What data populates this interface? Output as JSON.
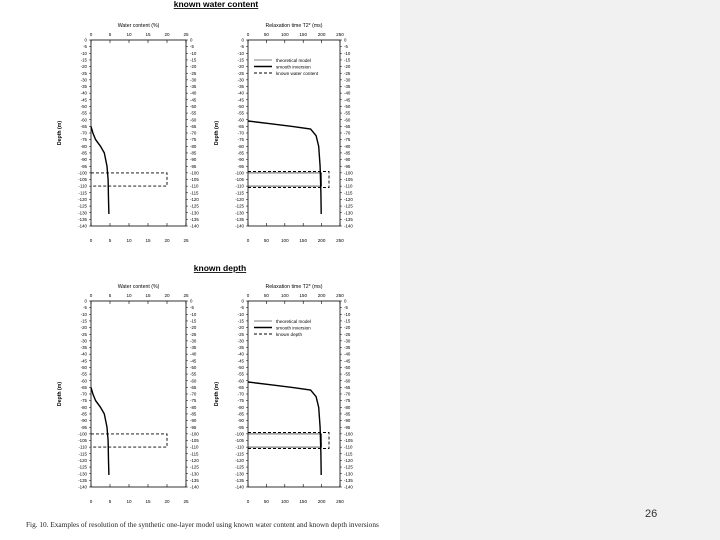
{
  "slide": {
    "page_number": "26",
    "caption": "Fig. 10. Examples of resolution of the synthetic one-layer model using known water content and known depth inversions"
  },
  "colors": {
    "ink": "#000000",
    "background": "#ffffff",
    "side_panel": "#f1f1f1"
  },
  "chart_data": [
    {
      "type": "line",
      "panel": "known water content",
      "title": "known water content",
      "xlabel": "Water content (%)",
      "ylabel": "Depth (m)",
      "xlim": [
        0,
        25
      ],
      "ylim": [
        -140,
        0
      ],
      "x_ticks": [
        "0",
        "5",
        "10",
        "15",
        "20",
        "25"
      ],
      "y_ticks_left": [
        "0",
        "-5",
        "-10",
        "-15",
        "-20",
        "-25",
        "-30",
        "-35",
        "-40",
        "-45",
        "-50",
        "-55",
        "-60",
        "-65",
        "-70",
        "-75",
        "-80",
        "-85",
        "-90",
        "-95",
        "-100",
        "-105",
        "-110",
        "-115",
        "-120",
        "-125",
        "-130",
        "-135",
        "-140"
      ],
      "y_ticks_right": [
        "0",
        "-5",
        "-10",
        "-15",
        "-20",
        "-25",
        "-30",
        "-35",
        "-40",
        "-45",
        "-50",
        "-55",
        "-60",
        "-65",
        "-70",
        "-75",
        "-80",
        "-85",
        "-90",
        "-95",
        "-100",
        "-105",
        "-110",
        "-115",
        "-120",
        "-125",
        "-130",
        "-135",
        "-140"
      ],
      "series": [
        {
          "style": "solid",
          "x": [
            0,
            0.5,
            1.2,
            2.5,
            3.5,
            4.2,
            4.5,
            4.6,
            4.7
          ],
          "y": [
            -65,
            -70,
            -75,
            -80,
            -85,
            -95,
            -105,
            -120,
            -131
          ]
        },
        {
          "style": "dashed",
          "x": [
            0,
            20,
            20,
            0
          ],
          "y": [
            -100,
            -100,
            -110,
            -110
          ]
        }
      ]
    },
    {
      "type": "line",
      "panel": "known water content",
      "xlabel": "Relaxation time T2* (ms)",
      "ylabel": "Depth (m)",
      "xlim": [
        0,
        250
      ],
      "ylim": [
        -140,
        0
      ],
      "x_ticks": [
        "0",
        "50",
        "100",
        "150",
        "200",
        "250"
      ],
      "y_ticks_left": [
        "0",
        "-5",
        "-10",
        "-15",
        "-20",
        "-25",
        "-30",
        "-35",
        "-40",
        "-45",
        "-50",
        "-55",
        "-60",
        "-65",
        "-70",
        "-75",
        "-80",
        "-85",
        "-90",
        "-95",
        "-100",
        "-105",
        "-110",
        "-115",
        "-120",
        "-125",
        "-130",
        "-135",
        "-140"
      ],
      "y_ticks_right": [
        "0",
        "-5",
        "-10",
        "-15",
        "-20",
        "-25",
        "-30",
        "-35",
        "-40",
        "-45",
        "-50",
        "-55",
        "-60",
        "-65",
        "-70",
        "-75",
        "-80",
        "-85",
        "-90",
        "-95",
        "-100",
        "-105",
        "-110",
        "-115",
        "-120",
        "-125",
        "-130",
        "-135",
        "-140"
      ],
      "legend": [
        "theoretical model",
        "smooth inversion",
        "known water content"
      ],
      "legend_position": "top-right",
      "series": [
        {
          "name": "theoretical model",
          "style": "thin",
          "x": [
            0,
            200,
            200,
            0
          ],
          "y": [
            -100,
            -100,
            -110,
            -110
          ]
        },
        {
          "name": "smooth inversion",
          "style": "solid",
          "x": [
            0,
            60,
            120,
            170,
            185,
            192,
            196,
            198,
            199
          ],
          "y": [
            -61,
            -63,
            -65,
            -67,
            -72,
            -80,
            -95,
            -115,
            -131
          ]
        },
        {
          "name": "known water content",
          "style": "dashed",
          "x": [
            0,
            220,
            220,
            0
          ],
          "y": [
            -99,
            -99,
            -111,
            -111
          ]
        }
      ]
    },
    {
      "type": "line",
      "panel": "known depth",
      "title": "known depth",
      "xlabel": "Water content (%)",
      "ylabel": "Depth (m)",
      "xlim": [
        0,
        25
      ],
      "ylim": [
        -140,
        0
      ],
      "x_ticks": [
        "0",
        "5",
        "10",
        "15",
        "20",
        "25"
      ],
      "y_ticks_left": [
        "0",
        "-5",
        "-10",
        "-15",
        "-20",
        "-25",
        "-30",
        "-35",
        "-40",
        "-45",
        "-50",
        "-55",
        "-60",
        "-65",
        "-70",
        "-75",
        "-80",
        "-85",
        "-90",
        "-95",
        "-100",
        "-105",
        "-110",
        "-115",
        "-120",
        "-125",
        "-130",
        "-135",
        "-140"
      ],
      "y_ticks_right": [
        "0",
        "-5",
        "-10",
        "-15",
        "-20",
        "-25",
        "-30",
        "-35",
        "-40",
        "-45",
        "-50",
        "-55",
        "-60",
        "-65",
        "-70",
        "-75",
        "-80",
        "-85",
        "-90",
        "-95",
        "-100",
        "-105",
        "-110",
        "-115",
        "-120",
        "-125",
        "-130",
        "-135",
        "-140"
      ],
      "series": [
        {
          "style": "solid",
          "x": [
            0,
            0.5,
            1.2,
            2.5,
            3.5,
            4.2,
            4.5,
            4.6,
            4.7
          ],
          "y": [
            -65,
            -70,
            -75,
            -80,
            -85,
            -95,
            -105,
            -120,
            -131
          ]
        },
        {
          "style": "dashed",
          "x": [
            0,
            20,
            20,
            0
          ],
          "y": [
            -100,
            -100,
            -110,
            -110
          ]
        }
      ]
    },
    {
      "type": "line",
      "panel": "known depth",
      "xlabel": "Relaxation time T2* (ms)",
      "ylabel": "Depth (m)",
      "xlim": [
        0,
        250
      ],
      "ylim": [
        -140,
        0
      ],
      "x_ticks": [
        "0",
        "50",
        "100",
        "150",
        "200",
        "250"
      ],
      "y_ticks_left": [
        "0",
        "-5",
        "-10",
        "-15",
        "-20",
        "-25",
        "-30",
        "-35",
        "-40",
        "-45",
        "-50",
        "-55",
        "-60",
        "-65",
        "-70",
        "-75",
        "-80",
        "-85",
        "-90",
        "-95",
        "-100",
        "-105",
        "-110",
        "-115",
        "-120",
        "-125",
        "-130",
        "-135",
        "-140"
      ],
      "y_ticks_right": [
        "0",
        "-5",
        "-10",
        "-15",
        "-20",
        "-25",
        "-30",
        "-35",
        "-40",
        "-45",
        "-50",
        "-55",
        "-60",
        "-65",
        "-70",
        "-75",
        "-80",
        "-85",
        "-90",
        "-95",
        "-100",
        "-105",
        "-110",
        "-115",
        "-120",
        "-125",
        "-130",
        "-135",
        "-140"
      ],
      "legend": [
        "theoretical model",
        "smooth inversion",
        "known depth"
      ],
      "legend_position": "top-right",
      "series": [
        {
          "name": "theoretical model",
          "style": "thin",
          "x": [
            0,
            200,
            200,
            0
          ],
          "y": [
            -100,
            -100,
            -110,
            -110
          ]
        },
        {
          "name": "smooth inversion",
          "style": "solid",
          "x": [
            0,
            60,
            120,
            170,
            185,
            192,
            196,
            198,
            199
          ],
          "y": [
            -61,
            -63,
            -65,
            -67,
            -72,
            -80,
            -95,
            -115,
            -131
          ]
        },
        {
          "name": "known depth",
          "style": "dashed",
          "x": [
            0,
            220,
            220,
            0
          ],
          "y": [
            -99,
            -99,
            -111,
            -111
          ]
        }
      ]
    }
  ]
}
